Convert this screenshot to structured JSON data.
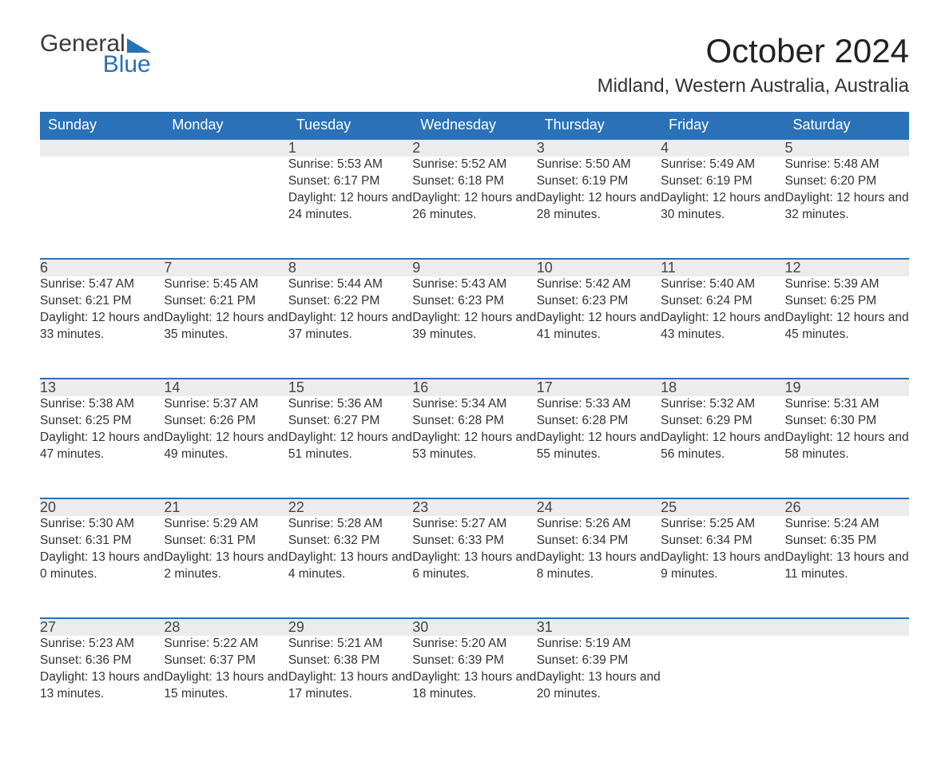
{
  "brand": {
    "word1": "General",
    "word2": "Blue"
  },
  "title": "October 2024",
  "location": "Midland, Western Australia, Australia",
  "colors": {
    "header_bg": "#2a71b8",
    "header_text": "#ffffff",
    "daynum_bg": "#ececec",
    "rule": "#2a71b8",
    "body_text": "#333333",
    "page_bg": "#ffffff"
  },
  "typography": {
    "title_fontsize": 42,
    "location_fontsize": 24,
    "header_fontsize": 18,
    "daynum_fontsize": 18,
    "body_fontsize": 15.5
  },
  "weekdays": [
    "Sunday",
    "Monday",
    "Tuesday",
    "Wednesday",
    "Thursday",
    "Friday",
    "Saturday"
  ],
  "weeks": [
    [
      null,
      null,
      {
        "n": "1",
        "sunrise": "5:53 AM",
        "sunset": "6:17 PM",
        "daylight": "12 hours and 24 minutes."
      },
      {
        "n": "2",
        "sunrise": "5:52 AM",
        "sunset": "6:18 PM",
        "daylight": "12 hours and 26 minutes."
      },
      {
        "n": "3",
        "sunrise": "5:50 AM",
        "sunset": "6:19 PM",
        "daylight": "12 hours and 28 minutes."
      },
      {
        "n": "4",
        "sunrise": "5:49 AM",
        "sunset": "6:19 PM",
        "daylight": "12 hours and 30 minutes."
      },
      {
        "n": "5",
        "sunrise": "5:48 AM",
        "sunset": "6:20 PM",
        "daylight": "12 hours and 32 minutes."
      }
    ],
    [
      {
        "n": "6",
        "sunrise": "5:47 AM",
        "sunset": "6:21 PM",
        "daylight": "12 hours and 33 minutes."
      },
      {
        "n": "7",
        "sunrise": "5:45 AM",
        "sunset": "6:21 PM",
        "daylight": "12 hours and 35 minutes."
      },
      {
        "n": "8",
        "sunrise": "5:44 AM",
        "sunset": "6:22 PM",
        "daylight": "12 hours and 37 minutes."
      },
      {
        "n": "9",
        "sunrise": "5:43 AM",
        "sunset": "6:23 PM",
        "daylight": "12 hours and 39 minutes."
      },
      {
        "n": "10",
        "sunrise": "5:42 AM",
        "sunset": "6:23 PM",
        "daylight": "12 hours and 41 minutes."
      },
      {
        "n": "11",
        "sunrise": "5:40 AM",
        "sunset": "6:24 PM",
        "daylight": "12 hours and 43 minutes."
      },
      {
        "n": "12",
        "sunrise": "5:39 AM",
        "sunset": "6:25 PM",
        "daylight": "12 hours and 45 minutes."
      }
    ],
    [
      {
        "n": "13",
        "sunrise": "5:38 AM",
        "sunset": "6:25 PM",
        "daylight": "12 hours and 47 minutes."
      },
      {
        "n": "14",
        "sunrise": "5:37 AM",
        "sunset": "6:26 PM",
        "daylight": "12 hours and 49 minutes."
      },
      {
        "n": "15",
        "sunrise": "5:36 AM",
        "sunset": "6:27 PM",
        "daylight": "12 hours and 51 minutes."
      },
      {
        "n": "16",
        "sunrise": "5:34 AM",
        "sunset": "6:28 PM",
        "daylight": "12 hours and 53 minutes."
      },
      {
        "n": "17",
        "sunrise": "5:33 AM",
        "sunset": "6:28 PM",
        "daylight": "12 hours and 55 minutes."
      },
      {
        "n": "18",
        "sunrise": "5:32 AM",
        "sunset": "6:29 PM",
        "daylight": "12 hours and 56 minutes."
      },
      {
        "n": "19",
        "sunrise": "5:31 AM",
        "sunset": "6:30 PM",
        "daylight": "12 hours and 58 minutes."
      }
    ],
    [
      {
        "n": "20",
        "sunrise": "5:30 AM",
        "sunset": "6:31 PM",
        "daylight": "13 hours and 0 minutes."
      },
      {
        "n": "21",
        "sunrise": "5:29 AM",
        "sunset": "6:31 PM",
        "daylight": "13 hours and 2 minutes."
      },
      {
        "n": "22",
        "sunrise": "5:28 AM",
        "sunset": "6:32 PM",
        "daylight": "13 hours and 4 minutes."
      },
      {
        "n": "23",
        "sunrise": "5:27 AM",
        "sunset": "6:33 PM",
        "daylight": "13 hours and 6 minutes."
      },
      {
        "n": "24",
        "sunrise": "5:26 AM",
        "sunset": "6:34 PM",
        "daylight": "13 hours and 8 minutes."
      },
      {
        "n": "25",
        "sunrise": "5:25 AM",
        "sunset": "6:34 PM",
        "daylight": "13 hours and 9 minutes."
      },
      {
        "n": "26",
        "sunrise": "5:24 AM",
        "sunset": "6:35 PM",
        "daylight": "13 hours and 11 minutes."
      }
    ],
    [
      {
        "n": "27",
        "sunrise": "5:23 AM",
        "sunset": "6:36 PM",
        "daylight": "13 hours and 13 minutes."
      },
      {
        "n": "28",
        "sunrise": "5:22 AM",
        "sunset": "6:37 PM",
        "daylight": "13 hours and 15 minutes."
      },
      {
        "n": "29",
        "sunrise": "5:21 AM",
        "sunset": "6:38 PM",
        "daylight": "13 hours and 17 minutes."
      },
      {
        "n": "30",
        "sunrise": "5:20 AM",
        "sunset": "6:39 PM",
        "daylight": "13 hours and 18 minutes."
      },
      {
        "n": "31",
        "sunrise": "5:19 AM",
        "sunset": "6:39 PM",
        "daylight": "13 hours and 20 minutes."
      },
      null,
      null
    ]
  ],
  "labels": {
    "sunrise": "Sunrise: ",
    "sunset": "Sunset: ",
    "daylight": "Daylight: "
  }
}
